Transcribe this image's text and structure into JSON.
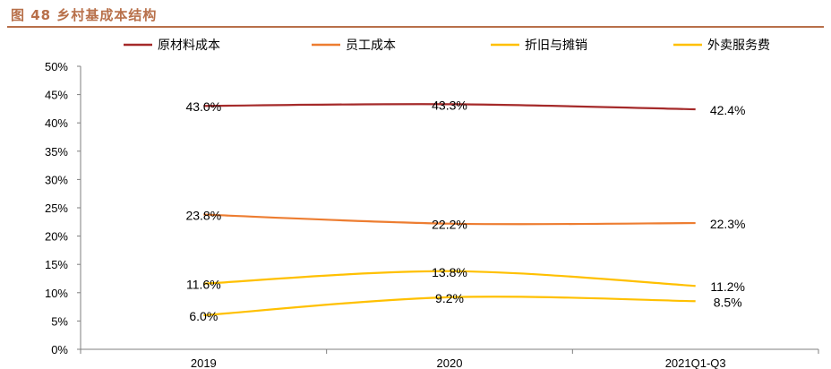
{
  "figure": {
    "title": "图 48  乡村基成本结构"
  },
  "chart_data": {
    "type": "line",
    "categories": [
      "2019",
      "2020",
      "2021Q1-Q3"
    ],
    "y_ticks": [
      "0%",
      "5%",
      "10%",
      "15%",
      "20%",
      "25%",
      "30%",
      "35%",
      "40%",
      "45%",
      "50%"
    ],
    "ylim": [
      0,
      50
    ],
    "grid": false,
    "legend_position": "top",
    "series": [
      {
        "name": "原材料成本",
        "color": "#a52a2a",
        "values": [
          43.0,
          43.3,
          42.4
        ],
        "labels": [
          "43.0%",
          "43.3%",
          "42.4%"
        ]
      },
      {
        "name": "员工成本",
        "color": "#ed7d31",
        "values": [
          23.8,
          22.2,
          22.3
        ],
        "labels": [
          "23.8%",
          "22.2%",
          "22.3%"
        ]
      },
      {
        "name": "折旧与摊销",
        "color": "#ffc000",
        "values": [
          11.6,
          13.8,
          11.2
        ],
        "labels": [
          "11.6%",
          "13.8%",
          "11.2%"
        ]
      },
      {
        "name": "外卖服务费",
        "color": "#ffc000",
        "values": [
          6.0,
          9.2,
          8.5
        ],
        "labels": [
          "6.0%",
          "9.2%",
          "8.5%"
        ]
      }
    ]
  }
}
